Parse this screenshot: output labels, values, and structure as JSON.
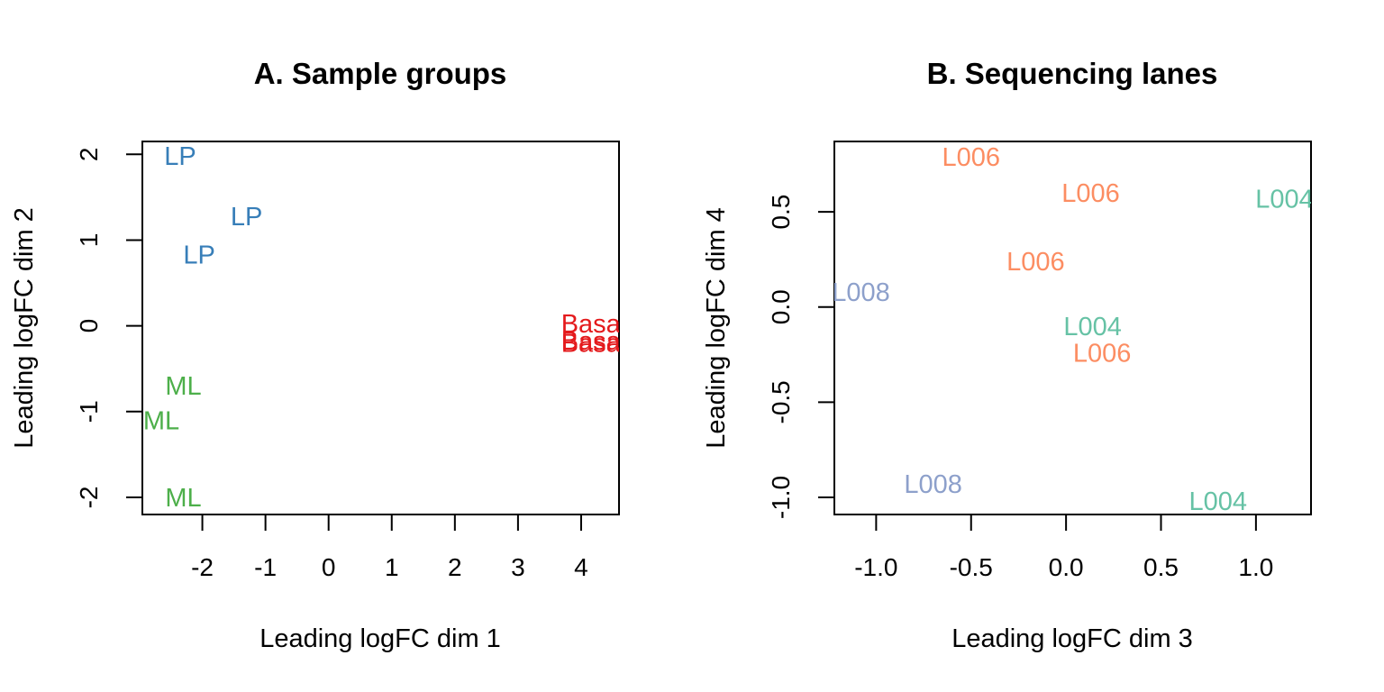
{
  "chart_data": [
    {
      "type": "scatter",
      "title": "A. Sample groups",
      "xlabel": "Leading logFC dim 1",
      "ylabel": "Leading logFC dim 2",
      "xlim": [
        -2.95,
        4.6
      ],
      "ylim": [
        -2.2,
        2.15
      ],
      "xticks": [
        -2,
        -1,
        0,
        1,
        2,
        3,
        4
      ],
      "yticks": [
        -2,
        -1,
        0,
        1,
        2
      ],
      "xtick_labels": [
        "-2",
        "-1",
        "0",
        "1",
        "2",
        "3",
        "4"
      ],
      "ytick_labels": [
        "-2",
        "-1",
        "0",
        "1",
        "2"
      ],
      "colors": {
        "LP": "#377eb8",
        "ML": "#4daf4a",
        "Basal": "#e41a1c"
      },
      "points": [
        {
          "x": -2.35,
          "y": 1.98,
          "label": "LP",
          "group": "LP"
        },
        {
          "x": -1.3,
          "y": 1.28,
          "label": "LP",
          "group": "LP"
        },
        {
          "x": -2.05,
          "y": 0.83,
          "label": "LP",
          "group": "LP"
        },
        {
          "x": 4.2,
          "y": 0.03,
          "label": "Basal",
          "group": "Basal"
        },
        {
          "x": 4.2,
          "y": -0.17,
          "label": "Basal",
          "group": "Basal"
        },
        {
          "x": 4.2,
          "y": -0.2,
          "label": "Basal",
          "group": "Basal"
        },
        {
          "x": -2.3,
          "y": -0.7,
          "label": "ML",
          "group": "ML"
        },
        {
          "x": -2.65,
          "y": -1.1,
          "label": "ML",
          "group": "ML"
        },
        {
          "x": -2.3,
          "y": -2.0,
          "label": "ML",
          "group": "ML"
        }
      ]
    },
    {
      "type": "scatter",
      "title": "B. Sequencing lanes",
      "xlabel": "Leading logFC dim 3",
      "ylabel": "Leading logFC dim 4",
      "xlim": [
        -1.22,
        1.29
      ],
      "ylim": [
        -1.09,
        0.87
      ],
      "xticks": [
        -1.0,
        -0.5,
        0.0,
        0.5,
        1.0
      ],
      "yticks": [
        -1.0,
        -0.5,
        0.0,
        0.5
      ],
      "xtick_labels": [
        "-1.0",
        "-0.5",
        "0.0",
        "0.5",
        "1.0"
      ],
      "ytick_labels": [
        "-1.0",
        "-0.5",
        "0.0",
        "0.5"
      ],
      "colors": {
        "L004": "#66c2a5",
        "L006": "#fc8d62",
        "L008": "#8da0cb"
      },
      "points": [
        {
          "x": -0.5,
          "y": 0.79,
          "label": "L006",
          "group": "L006"
        },
        {
          "x": 0.13,
          "y": 0.6,
          "label": "L006",
          "group": "L006"
        },
        {
          "x": 1.15,
          "y": 0.57,
          "label": "L004",
          "group": "L004"
        },
        {
          "x": -0.16,
          "y": 0.24,
          "label": "L006",
          "group": "L006"
        },
        {
          "x": -1.08,
          "y": 0.08,
          "label": "L008",
          "group": "L008"
        },
        {
          "x": 0.14,
          "y": -0.1,
          "label": "L004",
          "group": "L004"
        },
        {
          "x": 0.19,
          "y": -0.24,
          "label": "L006",
          "group": "L006"
        },
        {
          "x": -0.7,
          "y": -0.93,
          "label": "L008",
          "group": "L008"
        },
        {
          "x": 0.8,
          "y": -1.02,
          "label": "L004",
          "group": "L004"
        }
      ]
    }
  ]
}
